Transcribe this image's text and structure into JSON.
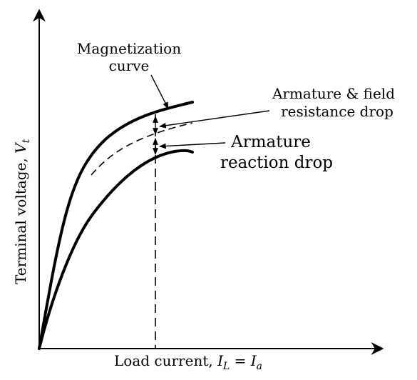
{
  "figure": {
    "x_axis_label": {
      "prefix": "Load current, ",
      "var1": "I",
      "sub1": "L",
      "eq": " = ",
      "var2": "I",
      "sub2": "a"
    },
    "y_axis_label": {
      "prefix": "Terminal voltage, ",
      "var": "V",
      "sub": "t"
    },
    "annotations": {
      "magnetization_line1": "Magnetization",
      "magnetization_line2": "curve",
      "resistance_line1": "Armature & field",
      "resistance_line2": "resistance drop",
      "reaction_line1": "Armature",
      "reaction_line2": "reaction drop"
    }
  },
  "colors": {
    "ink": "#000000",
    "background": "#ffffff"
  }
}
